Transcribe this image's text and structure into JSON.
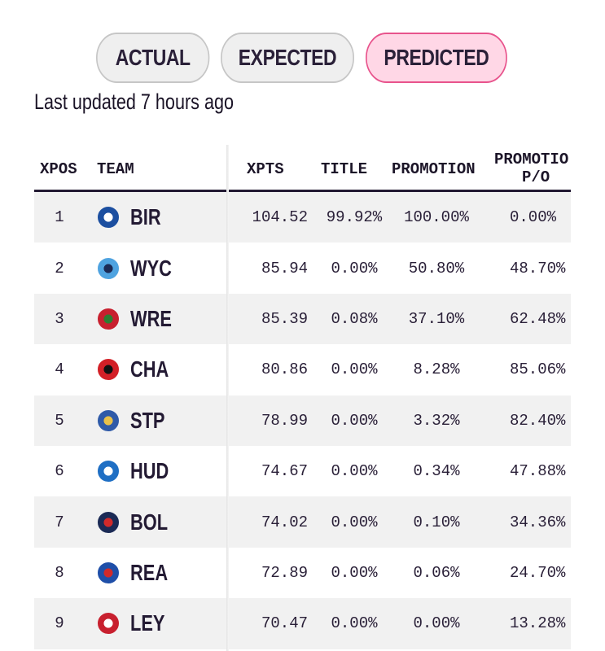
{
  "tabs": {
    "actual": "ACTUAL",
    "expected": "EXPECTED",
    "predicted": "PREDICTED",
    "active": "PREDICTED"
  },
  "last_updated": "Last updated 7 hours ago",
  "table": {
    "headers": {
      "xpos": "XPOS",
      "team": "TEAM",
      "xpts": "XPTS",
      "title": "TITLE",
      "promotion": "PROMOTION",
      "promotion_po_line1": "PROMOTIO",
      "promotion_po_line2": "P/O"
    },
    "rows": [
      {
        "pos": "1",
        "team": "BIR",
        "xpts": "104.52",
        "title": "99.92%",
        "promotion": "100.00%",
        "promotion_po": "0.00%",
        "crest": "birmingham-crest-icon",
        "colors": [
          "#1c4fa0",
          "#ffffff"
        ]
      },
      {
        "pos": "2",
        "team": "WYC",
        "xpts": "85.94",
        "title": "0.00%",
        "promotion": "50.80%",
        "promotion_po": "48.70%",
        "crest": "wycombe-crest-icon",
        "colors": [
          "#4fa3e0",
          "#1b2a55"
        ]
      },
      {
        "pos": "3",
        "team": "WRE",
        "xpts": "85.39",
        "title": "0.08%",
        "promotion": "37.10%",
        "promotion_po": "62.48%",
        "crest": "wrexham-crest-icon",
        "colors": [
          "#c8202f",
          "#2e7d32"
        ]
      },
      {
        "pos": "4",
        "team": "CHA",
        "xpts": "80.86",
        "title": "0.00%",
        "promotion": "8.28%",
        "promotion_po": "85.06%",
        "crest": "charlton-crest-icon",
        "colors": [
          "#d32027",
          "#111111"
        ]
      },
      {
        "pos": "5",
        "team": "STP",
        "xpts": "78.99",
        "title": "0.00%",
        "promotion": "3.32%",
        "promotion_po": "82.40%",
        "crest": "stockport-crest-icon",
        "colors": [
          "#2f5aa8",
          "#e8c04a"
        ]
      },
      {
        "pos": "6",
        "team": "HUD",
        "xpts": "74.67",
        "title": "0.00%",
        "promotion": "0.34%",
        "promotion_po": "47.88%",
        "crest": "huddersfield-crest-icon",
        "colors": [
          "#1f6fc4",
          "#ffffff"
        ]
      },
      {
        "pos": "7",
        "team": "BOL",
        "xpts": "74.02",
        "title": "0.00%",
        "promotion": "0.10%",
        "promotion_po": "34.36%",
        "crest": "bolton-crest-icon",
        "colors": [
          "#1b2a55",
          "#d12a2a"
        ]
      },
      {
        "pos": "8",
        "team": "REA",
        "xpts": "72.89",
        "title": "0.00%",
        "promotion": "0.06%",
        "promotion_po": "24.70%",
        "crest": "reading-crest-icon",
        "colors": [
          "#1f4fa8",
          "#d12a2a"
        ]
      },
      {
        "pos": "9",
        "team": "LEY",
        "xpts": "70.47",
        "title": "0.00%",
        "promotion": "0.00%",
        "promotion_po": "13.28%",
        "crest": "leyton-orient-crest-icon",
        "colors": [
          "#c8202f",
          "#ffffff"
        ]
      }
    ]
  },
  "colors": {
    "active_tab_bg": "#ffd7e6",
    "active_tab_border": "#e8538c",
    "inactive_tab_bg": "#efefef",
    "inactive_tab_border": "#c6c6c6",
    "text": "#231a33",
    "row_shade": "#f1f1f1"
  }
}
